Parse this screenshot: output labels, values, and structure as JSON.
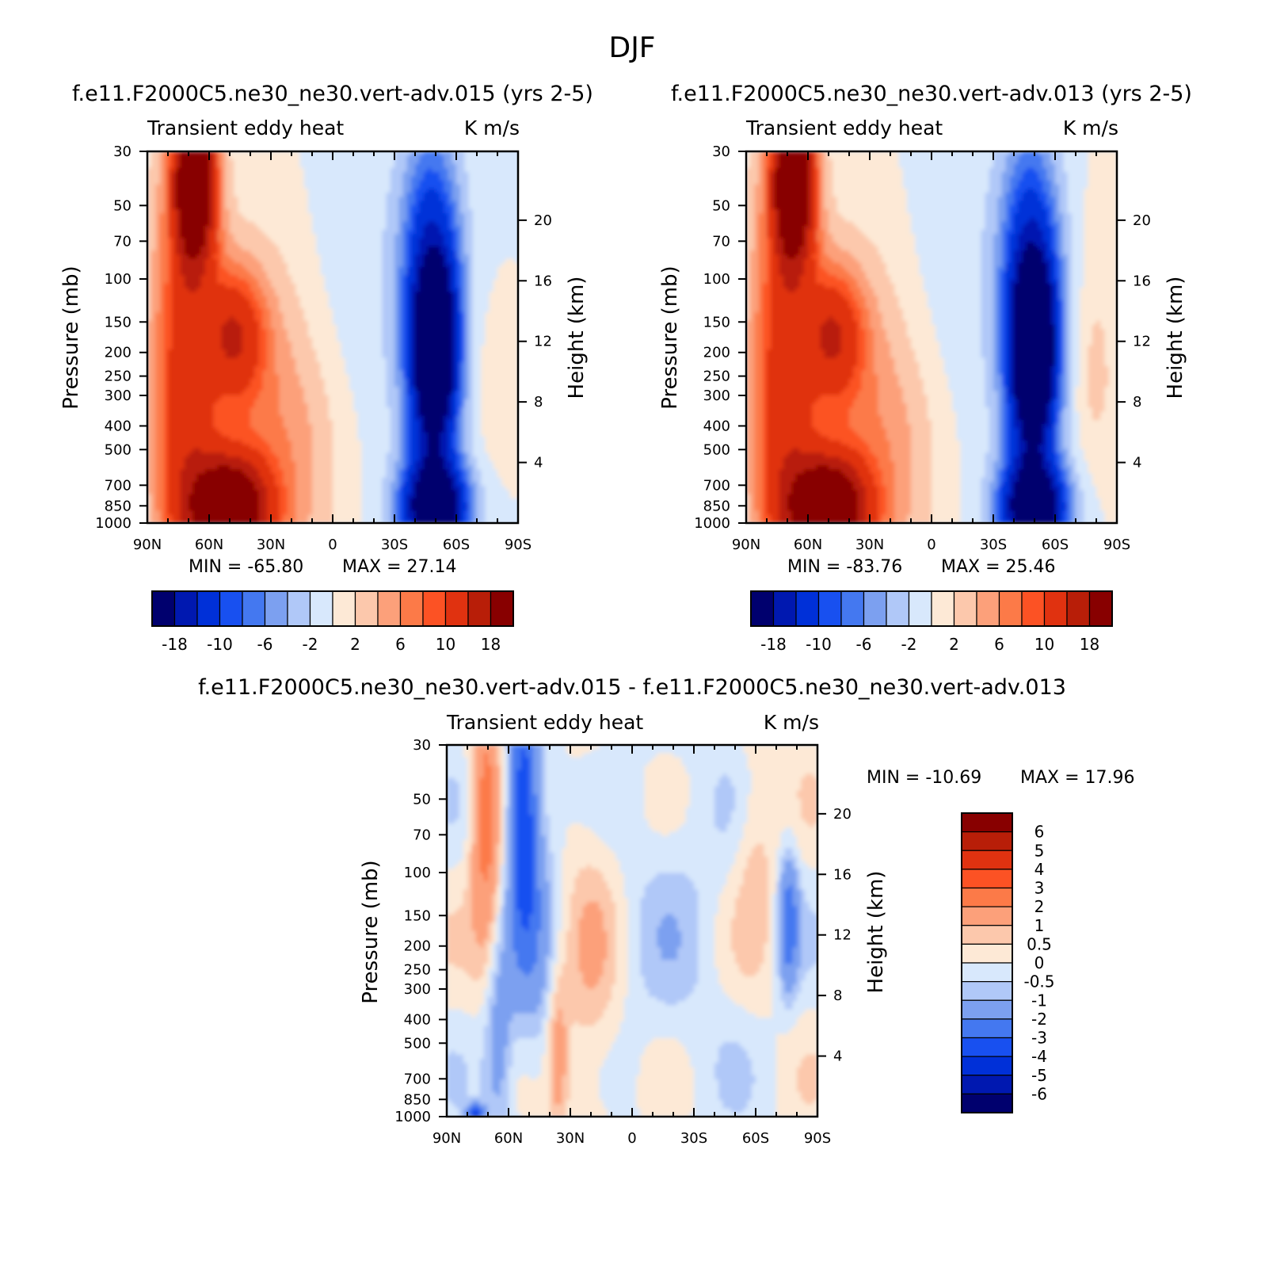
{
  "figure_title": "DJF",
  "colors": {
    "palette": [
      "#00006e",
      "#0018b0",
      "#0030d8",
      "#1850f0",
      "#4478f0",
      "#7ca0f0",
      "#b0c8f8",
      "#d8e8fc",
      "#fde9d6",
      "#fcc8ac",
      "#fca07a",
      "#fc7a48",
      "#fc5224",
      "#e03210",
      "#b81e08",
      "#880000"
    ]
  },
  "chart_data": [
    {
      "type": "contour",
      "name": "panel-left",
      "title": "f.e11.F2000C5.ne30_ne30.vert-adv.015 (yrs 2-5)",
      "left_label": "Transient eddy heat",
      "right_label": "K m/s",
      "ylabel": "Pressure (mb)",
      "ylabel_right": "Height (km)",
      "x_ticks": [
        "90N",
        "60N",
        "30N",
        "0",
        "30S",
        "60S",
        "90S"
      ],
      "y_ticks": [
        "30",
        "50",
        "70",
        "100",
        "150",
        "200",
        "250",
        "300",
        "400",
        "500",
        "700",
        "850",
        "1000"
      ],
      "height_ticks": [
        "20",
        "16",
        "12",
        "8",
        "4"
      ],
      "min_label": "MIN = -65.80",
      "max_label": "MAX =  27.14",
      "colorbar_labels": [
        "-18",
        "-10",
        "-6",
        "-2",
        "2",
        "6",
        "10",
        "18"
      ],
      "colorbar_orientation": "horizontal",
      "features": [
        {
          "lat": 66,
          "p": 40,
          "value": 26
        },
        {
          "lat": 45,
          "p": 880,
          "value": 27.1
        },
        {
          "lat": 62,
          "p": 880,
          "value": 22
        },
        {
          "lat": 45,
          "p": 170,
          "value": 12
        },
        {
          "lat": -50,
          "p": 190,
          "value": -22
        },
        {
          "lat": -50,
          "p": 880,
          "value": -22
        }
      ]
    },
    {
      "type": "contour",
      "name": "panel-right",
      "title": "f.e11.F2000C5.ne30_ne30.vert-adv.013 (yrs 2-5)",
      "left_label": "Transient eddy heat",
      "right_label": "K m/s",
      "ylabel": "Pressure (mb)",
      "ylabel_right": "Height (km)",
      "x_ticks": [
        "90N",
        "60N",
        "30N",
        "0",
        "30S",
        "60S",
        "90S"
      ],
      "y_ticks": [
        "30",
        "50",
        "70",
        "100",
        "150",
        "200",
        "250",
        "300",
        "400",
        "500",
        "700",
        "850",
        "1000"
      ],
      "height_ticks": [
        "20",
        "16",
        "12",
        "8",
        "4"
      ],
      "min_label": "MIN = -83.76",
      "max_label": "MAX =  25.46",
      "colorbar_labels": [
        "-18",
        "-10",
        "-6",
        "-2",
        "2",
        "6",
        "10",
        "18"
      ],
      "colorbar_orientation": "horizontal",
      "features": [
        {
          "lat": 66,
          "p": 40,
          "value": 25
        },
        {
          "lat": 45,
          "p": 880,
          "value": 25.5
        },
        {
          "lat": 62,
          "p": 880,
          "value": 22
        },
        {
          "lat": 45,
          "p": 170,
          "value": 12
        },
        {
          "lat": -50,
          "p": 190,
          "value": -24
        },
        {
          "lat": -50,
          "p": 880,
          "value": -22
        }
      ]
    },
    {
      "type": "contour",
      "name": "panel-diff",
      "title": "f.e11.F2000C5.ne30_ne30.vert-adv.015 - f.e11.F2000C5.ne30_ne30.vert-adv.013",
      "left_label": "Transient eddy heat",
      "right_label": "K m/s",
      "ylabel": "Pressure (mb)",
      "ylabel_right": "Height (km)",
      "x_ticks": [
        "90N",
        "60N",
        "30N",
        "0",
        "30S",
        "60S",
        "90S"
      ],
      "y_ticks": [
        "30",
        "50",
        "70",
        "100",
        "150",
        "200",
        "250",
        "300",
        "400",
        "500",
        "700",
        "850",
        "1000"
      ],
      "height_ticks": [
        "20",
        "16",
        "12",
        "8",
        "4"
      ],
      "min_label": "MIN = -10.69",
      "max_label": "MAX =   17.96",
      "colorbar_labels": [
        "6",
        "5",
        "4",
        "3",
        "2",
        "1",
        "0.5",
        "0",
        "-0.5",
        "-1",
        "-2",
        "-3",
        "-4",
        "-5",
        "-6"
      ],
      "colorbar_orientation": "vertical",
      "features": [
        {
          "lat": 70,
          "p": 60,
          "value": 2.5
        },
        {
          "lat": 52,
          "p": 60,
          "value": -3.5
        },
        {
          "lat": 35,
          "p": 600,
          "value": 1.5
        },
        {
          "lat": -75,
          "p": 150,
          "value": -2.5
        },
        {
          "lat": -62,
          "p": 80,
          "value": 1
        },
        {
          "lat": 75,
          "p": 980,
          "value": -4
        }
      ]
    }
  ]
}
